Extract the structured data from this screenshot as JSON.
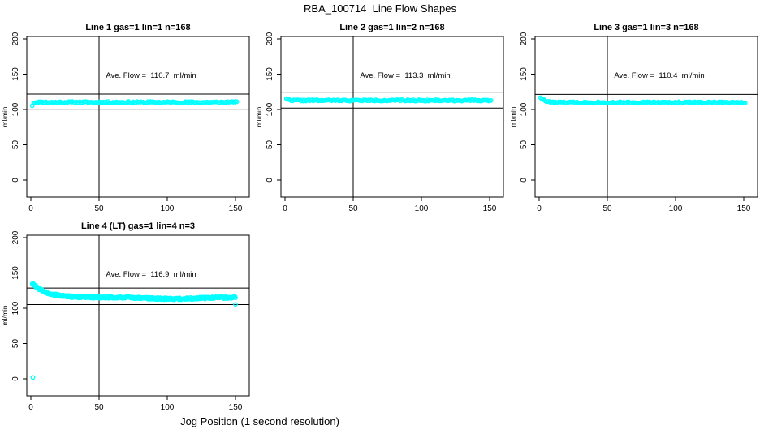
{
  "figure": {
    "title": "RBA_100714  Line Flow Shapes",
    "xlabel": "Jog Position (1 second resolution)",
    "background": "#ffffff",
    "point_color": "#00ffff",
    "line_color": "#000000"
  },
  "chart_data": [
    {
      "type": "scatter",
      "title": "Line 1 gas=1 lin=1 n=168",
      "ylabel": "ml/min",
      "annotation": "Ave. Flow =  110.7  ml/min",
      "ave_flow": 110.7,
      "n_points_label": 168,
      "x_ticks": [
        0,
        50,
        100,
        150
      ],
      "y_ticks": [
        0,
        50,
        100,
        150,
        200
      ],
      "xlim": [
        -5,
        162
      ],
      "ylim": [
        -24,
        202
      ],
      "vline_x": 50,
      "hlines": [
        121.8,
        99.6
      ],
      "grid": false,
      "series_model": {
        "x_min": 2,
        "x_max": 151,
        "n_points": 168,
        "start": 110.2,
        "asymptote": 110.2,
        "tau": 1.5,
        "jitter": 1.3,
        "seed": 11
      },
      "outlier_points": [
        [
          1,
          105.3
        ]
      ]
    },
    {
      "type": "scatter",
      "title": "Line 2 gas=1 lin=2 n=168",
      "ylabel": "ml/min",
      "annotation": "Ave. Flow =  113.3  ml/min",
      "ave_flow": 113.3,
      "n_points_label": 168,
      "x_ticks": [
        0,
        50,
        100,
        150
      ],
      "y_ticks": [
        0,
        50,
        100,
        150,
        200
      ],
      "xlim": [
        -5,
        162
      ],
      "ylim": [
        -24,
        202
      ],
      "vline_x": 50,
      "hlines": [
        124.6,
        102.0
      ],
      "grid": false,
      "series_model": {
        "x_min": 1,
        "x_max": 151,
        "n_points": 168,
        "start": 116.0,
        "asymptote": 112.9,
        "tau": 1.8,
        "jitter": 1.0,
        "seed": 22
      },
      "outlier_points": []
    },
    {
      "type": "scatter",
      "title": "Line 3 gas=1 lin=3 n=168",
      "ylabel": "ml/min",
      "annotation": "Ave. Flow =  110.4  ml/min",
      "ave_flow": 110.4,
      "n_points_label": 168,
      "x_ticks": [
        0,
        50,
        100,
        150
      ],
      "y_ticks": [
        0,
        50,
        100,
        150,
        200
      ],
      "xlim": [
        -5,
        162
      ],
      "ylim": [
        -24,
        202
      ],
      "vline_x": 50,
      "hlines": [
        121.4,
        99.4
      ],
      "grid": false,
      "series_model": {
        "x_min": 1,
        "x_max": 151,
        "n_points": 168,
        "start": 117.5,
        "asymptote": 109.9,
        "tau": 3.0,
        "jitter": 1.2,
        "seed": 33
      },
      "outlier_points": []
    },
    {
      "type": "scatter",
      "title": "Line 4 (LT) gas=1 lin=4 n=3",
      "ylabel": "ml/min",
      "annotation": "Ave. Flow =  116.9  ml/min",
      "ave_flow": 116.9,
      "n_points_label": 3,
      "x_ticks": [
        0,
        50,
        100,
        150
      ],
      "y_ticks": [
        0,
        50,
        100,
        150,
        200
      ],
      "xlim": [
        -5,
        162
      ],
      "ylim": [
        -24,
        202
      ],
      "vline_x": 50,
      "hlines": [
        128.6,
        105.2
      ],
      "grid": false,
      "series_model": {
        "x_min": 1,
        "x_max": 150,
        "n_points": 440,
        "start": 135.5,
        "asymptote": 115.3,
        "tau": 10,
        "jitter": 1.5,
        "seed": 44,
        "dip": {
          "center": 105,
          "sigma": 17,
          "depth": 2.0
        }
      },
      "outlier_points": [
        [
          1.5,
          2
        ],
        [
          150,
          105.5
        ]
      ]
    }
  ]
}
